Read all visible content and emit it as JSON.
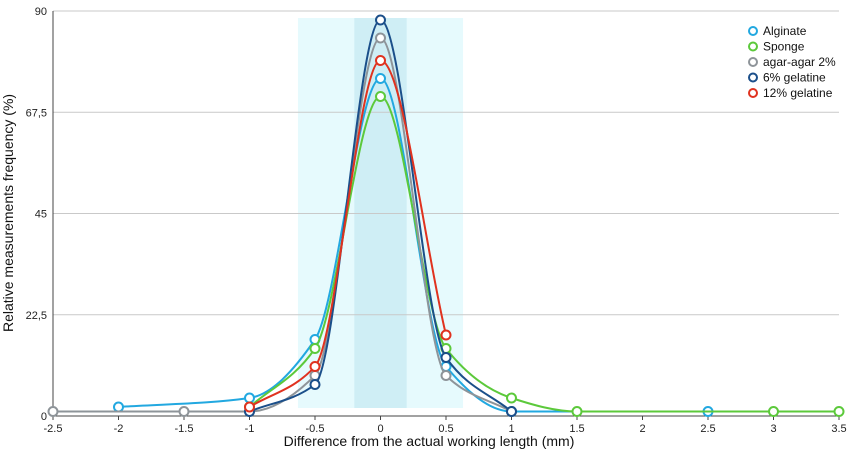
{
  "chart_data": {
    "type": "line",
    "title": "",
    "xlabel": "Difference from the actual working length (mm)",
    "ylabel": "Relative measurements frequency (%)",
    "xlim": [
      -2.5,
      3.5
    ],
    "ylim": [
      0,
      90
    ],
    "x_ticks": [
      -2.5,
      -2,
      -1.5,
      -1,
      -0.5,
      0,
      0.5,
      1,
      1.5,
      2,
      2.5,
      3,
      3.5
    ],
    "x_tick_labels": [
      "-2.5",
      "-2",
      "-1.5",
      "-1",
      "-0.5",
      "0",
      "0.5",
      "1",
      "1.5",
      "2",
      "2.5",
      "3",
      "3.5"
    ],
    "y_ticks": [
      0,
      22.5,
      45,
      67.5,
      90
    ],
    "y_tick_labels": [
      "0",
      "22,5",
      "45",
      "67,5",
      "90"
    ],
    "grid": "horizontal",
    "legend_position": "top-right",
    "shaded_regions": [
      {
        "from": -0.63,
        "to": 0.63,
        "color": "#e6fafd"
      },
      {
        "from": -0.2,
        "to": 0.2,
        "color": "#cfeef5"
      }
    ],
    "series": [
      {
        "name": "Alginate",
        "color": "#22a8e0",
        "x": [
          -2,
          -1,
          -0.5,
          0,
          0.5,
          1,
          2.5
        ],
        "y": [
          2,
          4,
          17,
          75,
          11,
          1,
          1
        ]
      },
      {
        "name": "Sponge",
        "color": "#5cc93b",
        "x": [
          -1,
          -0.5,
          0,
          0.5,
          1,
          1.5,
          3,
          3.5
        ],
        "y": [
          2,
          15,
          71,
          15,
          4,
          1,
          1,
          1
        ]
      },
      {
        "name": "agar-agar 2%",
        "color": "#8e9499",
        "x": [
          -2.5,
          -1.5,
          -1,
          -0.5,
          0,
          0.5,
          1
        ],
        "y": [
          1,
          1,
          1,
          9,
          84,
          9,
          1
        ]
      },
      {
        "name": "6% gelatine",
        "color": "#1b4f8a",
        "x": [
          -1,
          -0.5,
          0,
          0.5,
          1
        ],
        "y": [
          1,
          7,
          88,
          13,
          1
        ]
      },
      {
        "name": "12% gelatine",
        "color": "#e0321f",
        "x": [
          -1,
          -0.5,
          0,
          0.5
        ],
        "y": [
          2,
          11,
          79,
          18
        ]
      }
    ]
  }
}
